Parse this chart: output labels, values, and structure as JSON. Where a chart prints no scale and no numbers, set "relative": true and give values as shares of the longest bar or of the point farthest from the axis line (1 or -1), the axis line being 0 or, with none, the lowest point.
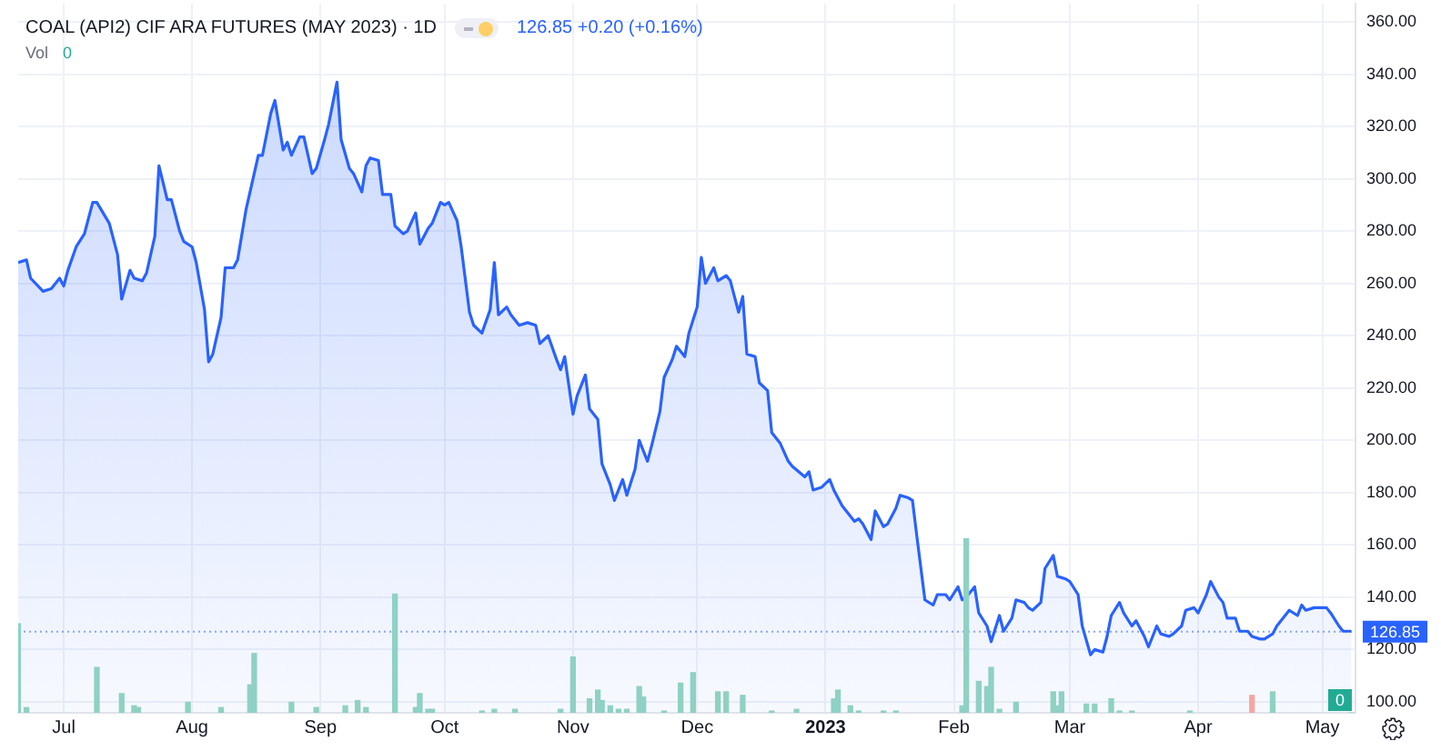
{
  "chart_data": [
    {
      "type": "area",
      "title": "COAL (API2) CIF ARA FUTURES (MAY 2023) · 1D",
      "annotations": [
        "126.85 +0.20 (+0.16%)",
        "Vol 0"
      ],
      "color": "#2962ff",
      "x": [
        "2022-06-20",
        "2022-06-22",
        "2022-06-23",
        "2022-06-26",
        "2022-06-28",
        "2022-06-30",
        "2022-07-01",
        "2022-07-02",
        "2022-07-04",
        "2022-07-06",
        "2022-07-08",
        "2022-07-09",
        "2022-07-12",
        "2022-07-14",
        "2022-07-15",
        "2022-07-17",
        "2022-07-18",
        "2022-07-20",
        "2022-07-21",
        "2022-07-23",
        "2022-07-24",
        "2022-07-26",
        "2022-07-27",
        "2022-07-29",
        "2022-07-30",
        "2022-08-01",
        "2022-08-02",
        "2022-08-04",
        "2022-08-05",
        "2022-08-06",
        "2022-08-08",
        "2022-08-09",
        "2022-08-11",
        "2022-08-12",
        "2022-08-14",
        "2022-08-15",
        "2022-08-17",
        "2022-08-18",
        "2022-08-20",
        "2022-08-21",
        "2022-08-23",
        "2022-08-24",
        "2022-08-25",
        "2022-08-27",
        "2022-08-28",
        "2022-08-30",
        "2022-08-31",
        "2022-09-02",
        "2022-09-03",
        "2022-09-05",
        "2022-09-06",
        "2022-09-08",
        "2022-09-09",
        "2022-09-11",
        "2022-09-12",
        "2022-09-13",
        "2022-09-15",
        "2022-09-16",
        "2022-09-18",
        "2022-09-19",
        "2022-09-21",
        "2022-09-22",
        "2022-09-24",
        "2022-09-25",
        "2022-09-27",
        "2022-09-28",
        "2022-09-30",
        "2022-10-01",
        "2022-10-02",
        "2022-10-04",
        "2022-10-05",
        "2022-10-07",
        "2022-10-08",
        "2022-10-10",
        "2022-10-12",
        "2022-10-13",
        "2022-10-14",
        "2022-10-16",
        "2022-10-17",
        "2022-10-19",
        "2022-10-21",
        "2022-10-23",
        "2022-10-24",
        "2022-10-26",
        "2022-10-28",
        "2022-10-29",
        "2022-10-30",
        "2022-11-01",
        "2022-11-02",
        "2022-11-04",
        "2022-11-05",
        "2022-11-07",
        "2022-11-08",
        "2022-11-10",
        "2022-11-11",
        "2022-11-13",
        "2022-11-14",
        "2022-11-16",
        "2022-11-17",
        "2022-11-19",
        "2022-11-20",
        "2022-11-22",
        "2022-11-23",
        "2022-11-25",
        "2022-11-26",
        "2022-11-28",
        "2022-11-29",
        "2022-12-01",
        "2022-12-02",
        "2022-12-03",
        "2022-12-05",
        "2022-12-06",
        "2022-12-08",
        "2022-12-09",
        "2022-12-11",
        "2022-12-12",
        "2022-12-13",
        "2022-12-15",
        "2022-12-16",
        "2022-12-18",
        "2022-12-19",
        "2022-12-21",
        "2022-12-23",
        "2022-12-24",
        "2022-12-27",
        "2022-12-28",
        "2022-12-29",
        "2022-12-31",
        "2023-01-02",
        "2023-01-03",
        "2023-01-05",
        "2023-01-06",
        "2023-01-08",
        "2023-01-09",
        "2023-01-10",
        "2023-01-12",
        "2023-01-13",
        "2023-01-15",
        "2023-01-16",
        "2023-01-18",
        "2023-01-19",
        "2023-01-21",
        "2023-01-22",
        "2023-01-23",
        "2023-01-25",
        "2023-01-27",
        "2023-01-28",
        "2023-01-30",
        "2023-01-31",
        "2023-02-02",
        "2023-02-03",
        "2023-02-04",
        "2023-02-06",
        "2023-02-07",
        "2023-02-09",
        "2023-02-10",
        "2023-02-12",
        "2023-02-13",
        "2023-02-15",
        "2023-02-16",
        "2023-02-18",
        "2023-02-19",
        "2023-02-20",
        "2023-02-22",
        "2023-02-23",
        "2023-02-25",
        "2023-02-26",
        "2023-02-28",
        "2023-03-01",
        "2023-03-03",
        "2023-03-04",
        "2023-03-06",
        "2023-03-07",
        "2023-03-09",
        "2023-03-10",
        "2023-03-11",
        "2023-03-13",
        "2023-03-14",
        "2023-03-16",
        "2023-03-17",
        "2023-03-19",
        "2023-03-20",
        "2023-03-22",
        "2023-03-23",
        "2023-03-25",
        "2023-03-26",
        "2023-03-28",
        "2023-03-29",
        "2023-03-31",
        "2023-04-01",
        "2023-04-03",
        "2023-04-04",
        "2023-04-06",
        "2023-04-07",
        "2023-04-08",
        "2023-04-10",
        "2023-04-11",
        "2023-04-13",
        "2023-04-14",
        "2023-04-16",
        "2023-04-17",
        "2023-04-19",
        "2023-04-20",
        "2023-04-22",
        "2023-04-23",
        "2023-04-25",
        "2023-04-26",
        "2023-04-27",
        "2023-04-29",
        "2023-05-02",
        "2023-05-03",
        "2023-05-05",
        "2023-05-06",
        "2023-05-08"
      ],
      "values": [
        268,
        269,
        262,
        257,
        258,
        262,
        259,
        265,
        274,
        279,
        291,
        291,
        283,
        271,
        254,
        265,
        262,
        261,
        264,
        278,
        305,
        292,
        292,
        280,
        276,
        274,
        268,
        250,
        230,
        233,
        247,
        266,
        266,
        269,
        288,
        295,
        309,
        309,
        325,
        330,
        311,
        314,
        309,
        316,
        316,
        302,
        304,
        315,
        321,
        337,
        315,
        304,
        302,
        295,
        305,
        308,
        307,
        294,
        294,
        282,
        279,
        280,
        287,
        275,
        281,
        283,
        291,
        290,
        291,
        284,
        274,
        249,
        244,
        241,
        250,
        268,
        248,
        251,
        248,
        244,
        245,
        244,
        237,
        240,
        231,
        227,
        232,
        210,
        217,
        225,
        212,
        208,
        191,
        183,
        177,
        185,
        179,
        189,
        200,
        192,
        198,
        211,
        224,
        231,
        236,
        232,
        241,
        251,
        270,
        260,
        266,
        261,
        263,
        261,
        249,
        255,
        233,
        232,
        222,
        219,
        203,
        199,
        192,
        190,
        186,
        188,
        181,
        182,
        185,
        181,
        175,
        173,
        169,
        170,
        168,
        162,
        173,
        167,
        168,
        174,
        179,
        178,
        177,
        164,
        139,
        137,
        141,
        141,
        139,
        144,
        139,
        140,
        144,
        134,
        129,
        123,
        133,
        127,
        132,
        139,
        138,
        136,
        135,
        138,
        151,
        156,
        148,
        147,
        146,
        141,
        129,
        118,
        120,
        119,
        125,
        133,
        138,
        134,
        129,
        131,
        125,
        121,
        129,
        126,
        125,
        126,
        129,
        135,
        136,
        134,
        141,
        146,
        140,
        138,
        132,
        132,
        127,
        127,
        125,
        124,
        124,
        126,
        129,
        133,
        135,
        133,
        137,
        135,
        136,
        136,
        134,
        129,
        127,
        127
      ],
      "xlim": [
        "2022-06-20",
        "2023-05-09"
      ],
      "xticks": [
        {
          "value": "2022-07-01",
          "label": "Jul"
        },
        {
          "value": "2022-08-01",
          "label": "Aug"
        },
        {
          "value": "2022-09-01",
          "label": "Sep"
        },
        {
          "value": "2022-10-01",
          "label": "Oct"
        },
        {
          "value": "2022-11-01",
          "label": "Nov"
        },
        {
          "value": "2022-12-01",
          "label": "Dec"
        },
        {
          "value": "2023-01-01",
          "label": "2023"
        },
        {
          "value": "2023-02-01",
          "label": "Feb"
        },
        {
          "value": "2023-03-01",
          "label": "Mar"
        },
        {
          "value": "2023-04-01",
          "label": "Apr"
        },
        {
          "value": "2023-05-01",
          "label": "May"
        }
      ],
      "ylim": [
        95.8,
        367
      ],
      "yticks": [
        {
          "value": 100,
          "label": "100.00"
        },
        {
          "value": 120,
          "label": "120.00"
        },
        {
          "value": 140,
          "label": "140.00"
        },
        {
          "value": 160,
          "label": "160.00"
        },
        {
          "value": 180,
          "label": "180.00"
        },
        {
          "value": 200,
          "label": "200.00"
        },
        {
          "value": 220,
          "label": "220.00"
        },
        {
          "value": 240,
          "label": "240.00"
        },
        {
          "value": 260,
          "label": "260.00"
        },
        {
          "value": 280,
          "label": "280.00"
        },
        {
          "value": 300,
          "label": "300.00"
        },
        {
          "value": 320,
          "label": "320.00"
        },
        {
          "value": 340,
          "label": "340.00"
        },
        {
          "value": 360,
          "label": "360.00"
        }
      ],
      "ref_lines": [
        {
          "axis": "y",
          "value": 126.85,
          "label": "126.85",
          "color": "#2962ff",
          "line_style": "dotted"
        }
      ],
      "grid": true
    },
    {
      "type": "bar",
      "relative": true,
      "xlim": [
        "2022-06-20",
        "2023-05-09"
      ],
      "annotations": [
        {
          "text": "0",
          "x": "2023-05-08",
          "y": 0
        }
      ],
      "x": [
        "2022-06-20",
        "2022-06-22",
        "2022-07-09",
        "2022-07-15",
        "2022-07-18",
        "2022-07-19",
        "2022-07-31",
        "2022-08-08",
        "2022-08-15",
        "2022-08-16",
        "2022-08-25",
        "2022-08-31",
        "2022-09-07",
        "2022-09-10",
        "2022-09-12",
        "2022-09-19",
        "2022-09-24",
        "2022-09-25",
        "2022-09-27",
        "2022-09-28",
        "2022-10-10",
        "2022-10-13",
        "2022-10-18",
        "2022-10-29",
        "2022-11-01",
        "2022-11-05",
        "2022-11-07",
        "2022-11-08",
        "2022-11-10",
        "2022-11-12",
        "2022-11-14",
        "2022-11-17",
        "2022-11-18",
        "2022-11-23",
        "2022-11-27",
        "2022-11-30",
        "2022-12-06",
        "2022-12-08",
        "2022-12-12",
        "2022-12-19",
        "2022-12-25",
        "2023-01-03",
        "2023-01-04",
        "2023-01-07",
        "2023-01-09",
        "2023-01-15",
        "2023-01-18",
        "2023-02-03",
        "2023-02-04",
        "2023-02-07",
        "2023-02-09",
        "2023-02-10",
        "2023-02-12",
        "2023-02-16",
        "2023-02-25",
        "2023-02-26",
        "2023-02-27",
        "2023-03-05",
        "2023-03-07",
        "2023-03-11",
        "2023-03-13",
        "2023-03-16",
        "2023-03-30",
        "2023-04-14",
        "2023-04-19",
        "2023-05-08"
      ],
      "values": [
        0.51,
        0.03,
        0.26,
        0.11,
        0.04,
        0.03,
        0.06,
        0.03,
        0.16,
        0.34,
        0.06,
        0.03,
        0.04,
        0.07,
        0.03,
        0.68,
        0.03,
        0.11,
        0.02,
        0.02,
        0.01,
        0.02,
        0.02,
        0.02,
        0.32,
        0.08,
        0.13,
        0.07,
        0.04,
        0.02,
        0.02,
        0.15,
        0.09,
        0.01,
        0.17,
        0.23,
        0.12,
        0.12,
        0.1,
        0.01,
        0.02,
        0.08,
        0.13,
        0.04,
        0.01,
        0.01,
        0.01,
        0.04,
        1,
        0.18,
        0.15,
        0.26,
        0.02,
        0.06,
        0.12,
        0.04,
        0.12,
        0.05,
        0.05,
        0.08,
        0.01,
        0.01,
        0.01,
        0.1,
        0.12,
        0
      ],
      "colors": [
        "#8fd1c4",
        "#8fd1c4",
        "#8fd1c4",
        "#8fd1c4",
        "#8fd1c4",
        "#8fd1c4",
        "#8fd1c4",
        "#8fd1c4",
        "#8fd1c4",
        "#8fd1c4",
        "#8fd1c4",
        "#8fd1c4",
        "#8fd1c4",
        "#8fd1c4",
        "#8fd1c4",
        "#8fd1c4",
        "#8fd1c4",
        "#8fd1c4",
        "#8fd1c4",
        "#8fd1c4",
        "#8fd1c4",
        "#8fd1c4",
        "#8fd1c4",
        "#8fd1c4",
        "#8fd1c4",
        "#8fd1c4",
        "#8fd1c4",
        "#8fd1c4",
        "#8fd1c4",
        "#8fd1c4",
        "#8fd1c4",
        "#8fd1c4",
        "#8fd1c4",
        "#8fd1c4",
        "#8fd1c4",
        "#8fd1c4",
        "#8fd1c4",
        "#8fd1c4",
        "#8fd1c4",
        "#8fd1c4",
        "#8fd1c4",
        "#8fd1c4",
        "#8fd1c4",
        "#8fd1c4",
        "#8fd1c4",
        "#8fd1c4",
        "#8fd1c4",
        "#8fd1c4",
        "#8fd1c4",
        "#8fd1c4",
        "#8fd1c4",
        "#8fd1c4",
        "#8fd1c4",
        "#8fd1c4",
        "#8fd1c4",
        "#8fd1c4",
        "#8fd1c4",
        "#8fd1c4",
        "#8fd1c4",
        "#8fd1c4",
        "#8fd1c4",
        "#8fd1c4",
        "#8fd1c4",
        "#f4a6a4",
        "#8fd1c4",
        "#8fd1c4"
      ]
    }
  ]
}
